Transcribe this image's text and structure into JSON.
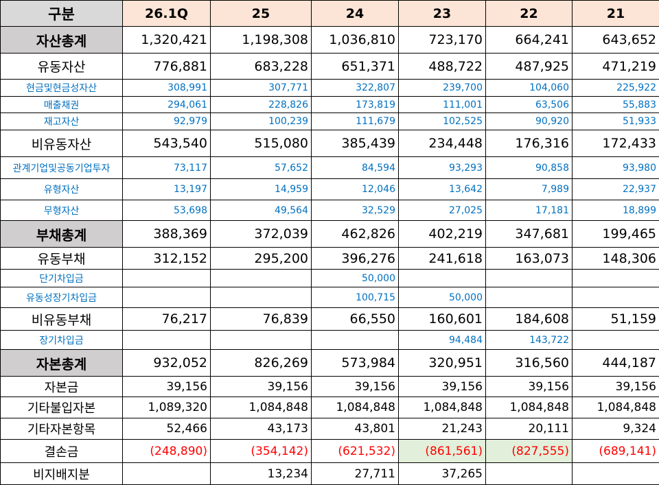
{
  "header": {
    "label": "구분",
    "columns": [
      "26.1Q",
      "25",
      "24",
      "23",
      "22",
      "21"
    ]
  },
  "rows": [
    {
      "label": "자산총계",
      "values": [
        "1,320,421",
        "1,198,308",
        "1,036,810",
        "723,170",
        "664,241",
        "643,652"
      ]
    },
    {
      "label": "유동자산",
      "values": [
        "776,881",
        "683,228",
        "651,371",
        "488,722",
        "487,925",
        "471,219"
      ]
    },
    {
      "label": "현금및현금성자산",
      "values": [
        "308,991",
        "307,771",
        "322,807",
        "239,700",
        "104,060",
        "225,922"
      ]
    },
    {
      "label": "매출채권",
      "values": [
        "294,061",
        "228,826",
        "173,819",
        "111,001",
        "63,506",
        "55,883"
      ]
    },
    {
      "label": "재고자산",
      "values": [
        "92,979",
        "100,239",
        "111,679",
        "102,525",
        "90,920",
        "51,933"
      ]
    },
    {
      "label": "비유동자산",
      "values": [
        "543,540",
        "515,080",
        "385,439",
        "234,448",
        "176,316",
        "172,433"
      ]
    },
    {
      "label": "관계기업및공동기업투자",
      "values": [
        "73,117",
        "57,652",
        "84,594",
        "93,293",
        "90,858",
        "93,980"
      ]
    },
    {
      "label": "유형자산",
      "values": [
        "13,197",
        "14,959",
        "12,046",
        "13,642",
        "7,989",
        "22,937"
      ]
    },
    {
      "label": "무형자산",
      "values": [
        "53,698",
        "49,564",
        "32,529",
        "27,025",
        "17,181",
        "18,899"
      ]
    },
    {
      "label": "부채총계",
      "values": [
        "388,369",
        "372,039",
        "462,826",
        "402,219",
        "347,681",
        "199,465"
      ]
    },
    {
      "label": "유동부채",
      "values": [
        "312,152",
        "295,200",
        "396,276",
        "241,618",
        "163,073",
        "148,306"
      ]
    },
    {
      "label": "단기차입금",
      "values": [
        null,
        null,
        "50,000",
        null,
        null,
        null
      ]
    },
    {
      "label": "유동성장기차입금",
      "values": [
        null,
        null,
        "100,715",
        "50,000",
        null,
        null
      ]
    },
    {
      "label": "비유동부채",
      "values": [
        "76,217",
        "76,839",
        "66,550",
        "160,601",
        "184,608",
        "51,159"
      ]
    },
    {
      "label": "장기차입금",
      "values": [
        null,
        null,
        null,
        "94,484",
        "143,722",
        null
      ]
    },
    {
      "label": "자본총계",
      "values": [
        "932,052",
        "826,269",
        "573,984",
        "320,951",
        "316,560",
        "444,187"
      ]
    },
    {
      "label": "자본금",
      "values": [
        "39,156",
        "39,156",
        "39,156",
        "39,156",
        "39,156",
        "39,156"
      ]
    },
    {
      "label": "기타불입자본",
      "values": [
        "1,089,320",
        "1,084,848",
        "1,084,848",
        "1,084,848",
        "1,084,848",
        "1,084,848"
      ]
    },
    {
      "label": "기타자본항목",
      "values": [
        "52,466",
        "43,173",
        "43,801",
        "21,243",
        "20,111",
        "9,324"
      ]
    },
    {
      "label": "결손금",
      "values": [
        "(248,890)",
        "(354,142)",
        "(621,532)",
        "(861,561)",
        "(827,555)",
        "(689,141)"
      ]
    },
    {
      "label": "비지배지분",
      "values": [
        null,
        "13,234",
        "27,711",
        "37,265",
        null,
        null
      ]
    }
  ]
}
